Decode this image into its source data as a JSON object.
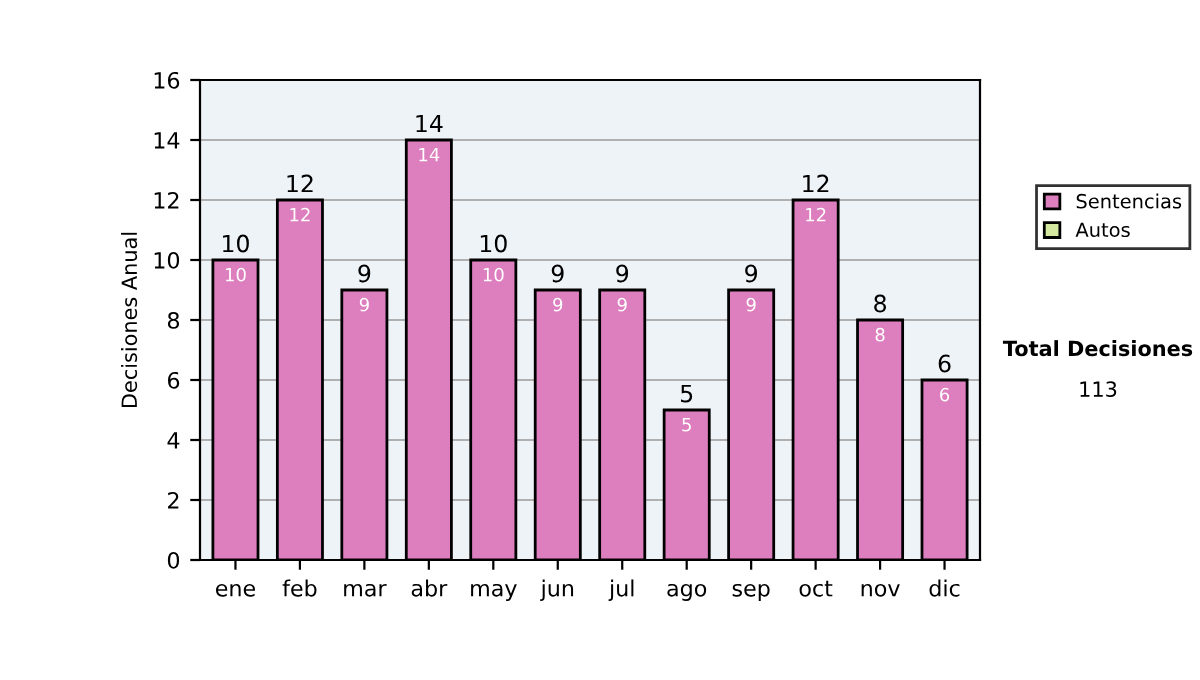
{
  "chart_data": {
    "type": "bar",
    "stacked": true,
    "ylabel": "Decisiones Anual",
    "categories": [
      "ene",
      "feb",
      "mar",
      "abr",
      "may",
      "jun",
      "jul",
      "ago",
      "sep",
      "oct",
      "nov",
      "dic"
    ],
    "series": [
      {
        "name": "Sentencias",
        "color": "#dd7fbf",
        "values": [
          10,
          12,
          9,
          14,
          10,
          9,
          9,
          5,
          9,
          12,
          8,
          6
        ],
        "value_labels": [
          "10",
          "12",
          "9",
          "14",
          "10",
          "9",
          "9",
          "5",
          "9",
          "12",
          "8",
          "6"
        ]
      },
      {
        "name": "Autos",
        "color": "#d4e8a0",
        "values": [
          0,
          0,
          0,
          0,
          0,
          0,
          0,
          0,
          0,
          0,
          0,
          0
        ]
      }
    ],
    "totals": [
      "10",
      "12",
      "9",
      "14",
      "10",
      "9",
      "9",
      "5",
      "9",
      "12",
      "8",
      "6"
    ],
    "ylim": [
      0,
      16
    ],
    "yticks": [
      0,
      2,
      4,
      6,
      8,
      10,
      12,
      14,
      16
    ],
    "grid": "y",
    "legend": "right",
    "annotations": [
      "Total Decisiones",
      "113"
    ]
  }
}
